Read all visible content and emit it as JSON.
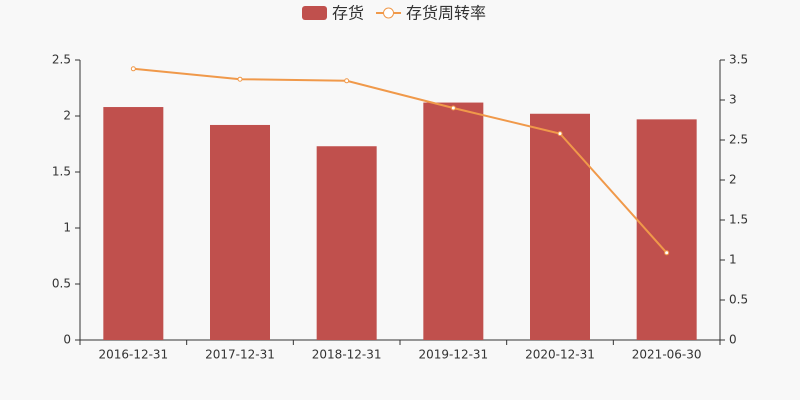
{
  "chart_data": {
    "type": "bar-line",
    "categories": [
      "2016-12-31",
      "2017-12-31",
      "2018-12-31",
      "2019-12-31",
      "2020-12-31",
      "2021-06-30"
    ],
    "series": [
      {
        "name": "存货",
        "type": "bar",
        "color": "#c0504d",
        "values": [
          2.08,
          1.92,
          1.73,
          2.12,
          2.02,
          1.97
        ]
      },
      {
        "name": "存货周转率",
        "type": "line",
        "axis": "y2",
        "color": "#f0994a",
        "values": [
          3.39,
          3.26,
          3.24,
          2.9,
          2.58,
          1.09
        ]
      }
    ],
    "ylim": [
      0,
      2.5
    ],
    "yticks": [
      0,
      0.5,
      1,
      1.5,
      2,
      2.5
    ],
    "y2lim": [
      0,
      3.5
    ],
    "y2ticks": [
      0,
      0.5,
      1,
      1.5,
      2,
      2.5,
      3,
      3.5
    ],
    "grid": false,
    "legend": "top"
  }
}
